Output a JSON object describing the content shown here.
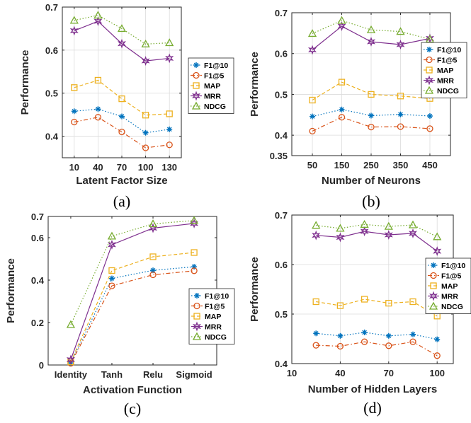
{
  "chart_data": [
    {
      "type": "line",
      "caption": "(a)",
      "xlabel": "Latent Factor Size",
      "ylabel": "Performance",
      "categories": [
        "10",
        "40",
        "70",
        "100",
        "130"
      ],
      "ylim": [
        0.35,
        0.7
      ],
      "yticks": [
        "0.4",
        "0.5",
        "0.6",
        "0.7"
      ],
      "grid": true,
      "legend_position": "center-right",
      "series": [
        {
          "name": "F1@10",
          "values": [
            0.458,
            0.463,
            0.446,
            0.408,
            0.416
          ]
        },
        {
          "name": "F1@5",
          "values": [
            0.433,
            0.444,
            0.41,
            0.373,
            0.38
          ]
        },
        {
          "name": "MAP",
          "values": [
            0.513,
            0.53,
            0.487,
            0.449,
            0.452
          ]
        },
        {
          "name": "MRR",
          "values": [
            0.645,
            0.667,
            0.615,
            0.575,
            0.581
          ]
        },
        {
          "name": "NDCG",
          "values": [
            0.669,
            0.681,
            0.65,
            0.614,
            0.617
          ]
        }
      ]
    },
    {
      "type": "line",
      "caption": "(b)",
      "xlabel": "Number of Neurons",
      "ylabel": "Performance",
      "categories": [
        "50",
        "150",
        "250",
        "350",
        "450"
      ],
      "ylim": [
        0.35,
        0.7
      ],
      "yticks": [
        "0.35",
        "0.4",
        "0.5",
        "0.6",
        "0.7"
      ],
      "grid": true,
      "legend_position": "center-right",
      "series": [
        {
          "name": "F1@10",
          "values": [
            0.446,
            0.463,
            0.448,
            0.451,
            0.447
          ]
        },
        {
          "name": "F1@5",
          "values": [
            0.41,
            0.444,
            0.42,
            0.421,
            0.416
          ]
        },
        {
          "name": "MAP",
          "values": [
            0.486,
            0.53,
            0.5,
            0.496,
            0.49
          ]
        },
        {
          "name": "MRR",
          "values": [
            0.609,
            0.667,
            0.629,
            0.622,
            0.637
          ]
        },
        {
          "name": "NDCG",
          "values": [
            0.649,
            0.681,
            0.658,
            0.654,
            0.635
          ]
        }
      ]
    },
    {
      "type": "line",
      "caption": "(c)",
      "xlabel": "Activation Function",
      "ylabel": "Performance",
      "categories": [
        "Identity",
        "Tanh",
        "Relu",
        "Sigmoid"
      ],
      "ylim": [
        0,
        0.7
      ],
      "yticks": [
        "0",
        "0.2",
        "0.4",
        "0.6",
        "0.7"
      ],
      "grid": false,
      "legend_position": "bottom-right",
      "series": [
        {
          "name": "F1@10",
          "values": [
            0.01,
            0.408,
            0.446,
            0.463
          ]
        },
        {
          "name": "F1@5",
          "values": [
            0.008,
            0.373,
            0.425,
            0.444
          ]
        },
        {
          "name": "MAP",
          "values": [
            0.015,
            0.445,
            0.51,
            0.53
          ]
        },
        {
          "name": "MRR",
          "values": [
            0.025,
            0.567,
            0.645,
            0.667
          ]
        },
        {
          "name": "NDCG",
          "values": [
            0.19,
            0.607,
            0.665,
            0.681
          ]
        }
      ]
    },
    {
      "type": "line",
      "caption": "(d)",
      "xlabel": "Number of Hidden Layers",
      "ylabel": "Performance",
      "xticks": [
        "10",
        "40",
        "70",
        "100"
      ],
      "xlim": [
        10,
        110
      ],
      "ylim": [
        0.4,
        0.7
      ],
      "yticks": [
        "0.4",
        "0.5",
        "0.6",
        "0.7"
      ],
      "grid": true,
      "legend_position": "center-right",
      "x": [
        25,
        40,
        55,
        70,
        85,
        100
      ],
      "series": [
        {
          "name": "F1@10",
          "values": [
            0.461,
            0.456,
            0.463,
            0.456,
            0.459,
            0.449
          ]
        },
        {
          "name": "F1@5",
          "values": [
            0.437,
            0.435,
            0.444,
            0.436,
            0.444,
            0.416
          ]
        },
        {
          "name": "MAP",
          "values": [
            0.525,
            0.517,
            0.53,
            0.522,
            0.525,
            0.496
          ]
        },
        {
          "name": "MRR",
          "values": [
            0.659,
            0.655,
            0.667,
            0.66,
            0.663,
            0.627
          ]
        },
        {
          "name": "NDCG",
          "values": [
            0.679,
            0.673,
            0.681,
            0.677,
            0.68,
            0.656
          ]
        }
      ]
    }
  ],
  "series_style": {
    "F1@10": {
      "color": "#0072BD",
      "marker": "star",
      "dash": "1.5,2.5"
    },
    "F1@5": {
      "color": "#D95319",
      "marker": "circle",
      "dash": "6,3,1.5,3"
    },
    "MAP": {
      "color": "#EDB120",
      "marker": "square",
      "dash": "5,3"
    },
    "MRR": {
      "color": "#7E2F8E",
      "marker": "hexagram",
      "dash": ""
    },
    "NDCG": {
      "color": "#77AC30",
      "marker": "triangle",
      "dash": "1.5,2.5"
    }
  }
}
